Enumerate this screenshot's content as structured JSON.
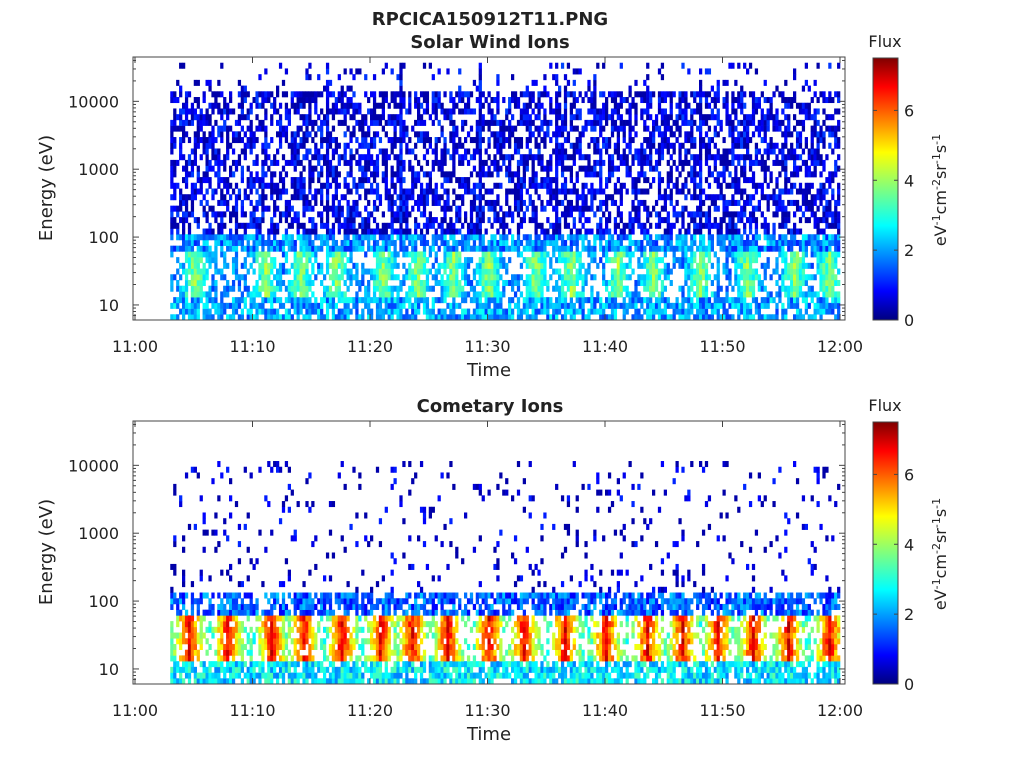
{
  "figure_title": "RPCICA150912T11.PNG",
  "panels": [
    {
      "title": "Solar Wind Ions",
      "xlabel": "Time",
      "ylabel": "Energy (eV)",
      "colorbar": {
        "title": "Flux",
        "ticks": [
          "0",
          "2",
          "4",
          "6"
        ]
      }
    },
    {
      "title": "Cometary Ions",
      "xlabel": "Time",
      "ylabel": "Energy (eV)",
      "colorbar": {
        "title": "Flux",
        "ticks": [
          "0",
          "2",
          "4",
          "6"
        ]
      }
    }
  ],
  "chart_data": [
    {
      "type": "heatmap",
      "title": "Solar Wind Ions",
      "xlabel": "Time",
      "ylabel": "Energy (eV)",
      "x_ticks": [
        "11:00",
        "11:10",
        "11:20",
        "11:30",
        "11:40",
        "11:50",
        "12:00"
      ],
      "y_ticks": [
        "10",
        "100",
        "1000",
        "10000"
      ],
      "yscale": "log",
      "xlim": [
        "11:00",
        "12:00"
      ],
      "data_start": "11:03",
      "ylim": [
        6,
        45000
      ],
      "colorbar": {
        "label": "Flux",
        "unit": "eV^-1 cm^-2 sr^-1 s^-1",
        "range": [
          0,
          7.5
        ],
        "ticks": [
          0,
          2,
          4,
          6
        ],
        "colormap": "jet"
      },
      "bands": [
        {
          "energy_range_ev": [
            6,
            12
          ],
          "typical_flux": 2.0,
          "fill": 0.75
        },
        {
          "energy_range_ev": [
            12,
            60
          ],
          "typical_flux": 3.5,
          "fill": 0.9
        },
        {
          "energy_range_ev": [
            60,
            100
          ],
          "typical_flux": 1.8,
          "fill": 0.8
        },
        {
          "energy_range_ev": [
            100,
            15000
          ],
          "typical_flux": 0.5,
          "fill": 0.55
        },
        {
          "energy_range_ev": [
            15000,
            40000
          ],
          "typical_flux": 0.5,
          "fill": 0.1
        }
      ],
      "peak_bursts_minutes": [
        5,
        11,
        14,
        17,
        21,
        24,
        27,
        30,
        34,
        37,
        41,
        44,
        48,
        52,
        56,
        59
      ],
      "vertical_streaks_minutes": [
        16.2,
        22.5,
        29.2,
        35.7,
        48.0
      ]
    },
    {
      "type": "heatmap",
      "title": "Cometary Ions",
      "xlabel": "Time",
      "ylabel": "Energy (eV)",
      "x_ticks": [
        "11:00",
        "11:10",
        "11:20",
        "11:30",
        "11:40",
        "11:50",
        "12:00"
      ],
      "y_ticks": [
        "10",
        "100",
        "1000",
        "10000"
      ],
      "yscale": "log",
      "xlim": [
        "11:00",
        "12:00"
      ],
      "data_start": "11:03",
      "ylim": [
        6,
        45000
      ],
      "colorbar": {
        "label": "Flux",
        "unit": "eV^-1 cm^-2 sr^-1 s^-1",
        "range": [
          0,
          7.5
        ],
        "ticks": [
          0,
          2,
          4,
          6
        ],
        "colormap": "jet"
      },
      "bands": [
        {
          "energy_range_ev": [
            6,
            14
          ],
          "typical_flux": 2.5,
          "fill": 0.8
        },
        {
          "energy_range_ev": [
            14,
            60
          ],
          "typical_flux": 6.0,
          "fill": 0.85
        },
        {
          "energy_range_ev": [
            60,
            130
          ],
          "typical_flux": 1.5,
          "fill": 0.7
        },
        {
          "energy_range_ev": [
            130,
            11000
          ],
          "typical_flux": 0.3,
          "fill": 0.08
        }
      ],
      "peak_bursts_minutes": [
        4.5,
        7.8,
        11.5,
        14.3,
        17.5,
        20.8,
        23.5,
        26.5,
        30.0,
        33.0,
        36.5,
        40.0,
        43.5,
        46.5,
        49.5,
        52.5,
        55.5,
        59.0
      ]
    }
  ]
}
